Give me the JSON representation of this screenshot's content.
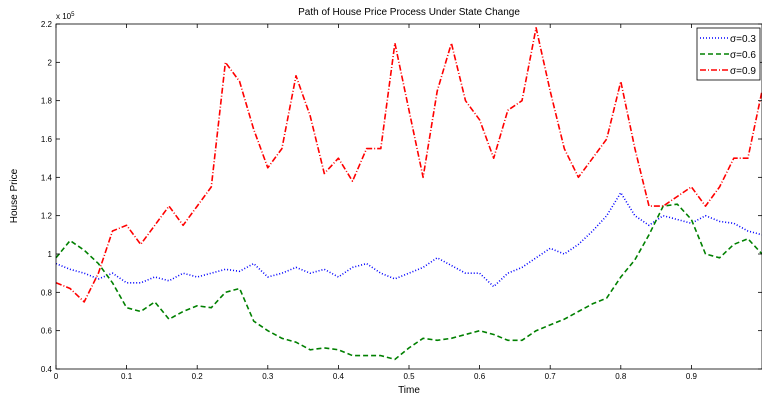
{
  "chart_data": {
    "type": "line",
    "title": "Path of House Price Process Under State Change",
    "xlabel": "Time",
    "ylabel": "House Price",
    "y_scale_label": "x 10",
    "y_scale_exponent": "5",
    "xlim": [
      0,
      1
    ],
    "ylim": [
      0.4,
      2.2
    ],
    "x_ticks": [
      0,
      0.1,
      0.2,
      0.3,
      0.4,
      0.5,
      0.6,
      0.7,
      0.8,
      0.9
    ],
    "x_tick_labels": [
      "0",
      "0.1",
      "0.2",
      "0.3",
      "0.4",
      "0.5",
      "0.6",
      "0.7",
      "0.8",
      "0.9"
    ],
    "y_ticks": [
      0.4,
      0.6,
      0.8,
      1,
      1.2,
      1.4,
      1.6,
      1.8,
      2,
      2.2
    ],
    "y_tick_labels": [
      "0.4",
      "0.6",
      "0.8",
      "1",
      "1.2",
      "1.4",
      "1.6",
      "1.8",
      "2",
      "2.2"
    ],
    "grid": false,
    "legend_position": "top-right",
    "series": [
      {
        "name": "σ=0.3",
        "color": "#0000ff",
        "dash": "1,2",
        "x": [
          0,
          0.02,
          0.04,
          0.06,
          0.08,
          0.1,
          0.12,
          0.14,
          0.16,
          0.18,
          0.2,
          0.22,
          0.24,
          0.26,
          0.28,
          0.3,
          0.32,
          0.34,
          0.36,
          0.38,
          0.4,
          0.42,
          0.44,
          0.46,
          0.48,
          0.5,
          0.52,
          0.54,
          0.56,
          0.58,
          0.6,
          0.62,
          0.64,
          0.66,
          0.68,
          0.7,
          0.72,
          0.74,
          0.76,
          0.78,
          0.8,
          0.82,
          0.84,
          0.86,
          0.88,
          0.9,
          0.92,
          0.94,
          0.96,
          0.98,
          1.0
        ],
        "values": [
          0.95,
          0.92,
          0.9,
          0.87,
          0.9,
          0.85,
          0.85,
          0.88,
          0.86,
          0.9,
          0.88,
          0.9,
          0.92,
          0.91,
          0.95,
          0.88,
          0.9,
          0.93,
          0.9,
          0.92,
          0.88,
          0.93,
          0.95,
          0.9,
          0.87,
          0.9,
          0.93,
          0.98,
          0.94,
          0.9,
          0.9,
          0.83,
          0.9,
          0.93,
          0.98,
          1.03,
          1.0,
          1.05,
          1.12,
          1.2,
          1.32,
          1.2,
          1.15,
          1.2,
          1.18,
          1.16,
          1.2,
          1.17,
          1.16,
          1.12,
          1.1
        ]
      },
      {
        "name": "σ=0.6",
        "color": "#008000",
        "dash": "5,3",
        "x": [
          0,
          0.02,
          0.04,
          0.06,
          0.08,
          0.1,
          0.12,
          0.14,
          0.16,
          0.18,
          0.2,
          0.22,
          0.24,
          0.26,
          0.28,
          0.3,
          0.32,
          0.34,
          0.36,
          0.38,
          0.4,
          0.42,
          0.44,
          0.46,
          0.48,
          0.5,
          0.52,
          0.54,
          0.56,
          0.58,
          0.6,
          0.62,
          0.64,
          0.66,
          0.68,
          0.7,
          0.72,
          0.74,
          0.76,
          0.78,
          0.8,
          0.82,
          0.84,
          0.86,
          0.88,
          0.9,
          0.92,
          0.94,
          0.96,
          0.98,
          1.0
        ],
        "values": [
          0.98,
          1.07,
          1.02,
          0.95,
          0.85,
          0.72,
          0.7,
          0.75,
          0.66,
          0.7,
          0.73,
          0.72,
          0.8,
          0.82,
          0.65,
          0.6,
          0.56,
          0.54,
          0.5,
          0.51,
          0.5,
          0.47,
          0.47,
          0.47,
          0.45,
          0.51,
          0.56,
          0.55,
          0.56,
          0.58,
          0.6,
          0.58,
          0.55,
          0.55,
          0.6,
          0.63,
          0.66,
          0.7,
          0.74,
          0.77,
          0.88,
          0.97,
          1.1,
          1.25,
          1.26,
          1.18,
          1.0,
          0.98,
          1.05,
          1.08,
          1.0
        ]
      },
      {
        "name": "σ=0.9",
        "color": "#ff0000",
        "dash": "6,2,1,2",
        "x": [
          0,
          0.02,
          0.04,
          0.06,
          0.08,
          0.1,
          0.12,
          0.14,
          0.16,
          0.18,
          0.2,
          0.22,
          0.24,
          0.26,
          0.28,
          0.3,
          0.32,
          0.34,
          0.36,
          0.38,
          0.4,
          0.42,
          0.44,
          0.46,
          0.48,
          0.5,
          0.52,
          0.54,
          0.56,
          0.58,
          0.6,
          0.62,
          0.64,
          0.66,
          0.68,
          0.7,
          0.72,
          0.74,
          0.76,
          0.78,
          0.8,
          0.82,
          0.84,
          0.86,
          0.88,
          0.9,
          0.92,
          0.94,
          0.96,
          0.98,
          1.0
        ],
        "values": [
          0.85,
          0.82,
          0.75,
          0.9,
          1.12,
          1.15,
          1.05,
          1.15,
          1.25,
          1.15,
          1.25,
          1.35,
          2.0,
          1.9,
          1.65,
          1.45,
          1.55,
          1.93,
          1.72,
          1.42,
          1.5,
          1.38,
          1.55,
          1.55,
          2.1,
          1.75,
          1.4,
          1.85,
          2.1,
          1.8,
          1.7,
          1.5,
          1.75,
          1.8,
          2.18,
          1.85,
          1.55,
          1.4,
          1.5,
          1.6,
          1.9,
          1.55,
          1.25,
          1.25,
          1.3,
          1.35,
          1.25,
          1.35,
          1.5,
          1.5,
          1.85
        ]
      }
    ]
  }
}
